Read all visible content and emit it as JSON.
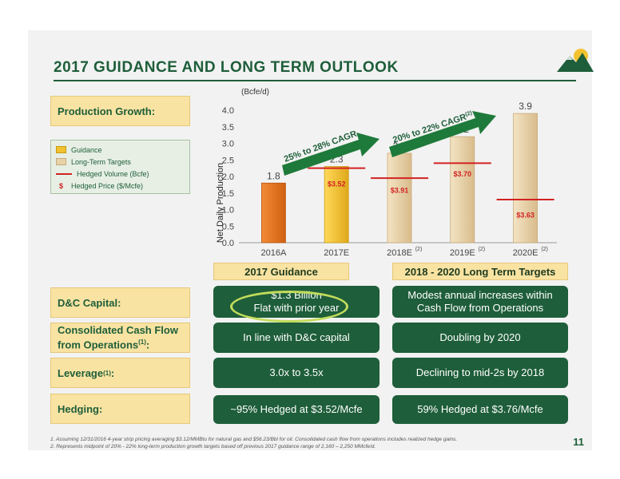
{
  "title": "2017 GUIDANCE AND LONG TERM OUTLOOK",
  "labels": {
    "production_growth": "Production Growth:",
    "dc_capital": "D&C Capital:",
    "cash_flow_line1": "Consolidated Cash Flow",
    "cash_flow_line2": "from Operations",
    "cash_flow_sup": "(1)",
    "cash_flow_colon": ":",
    "leverage": "Leverage",
    "leverage_sup": "(1)",
    "leverage_colon": ":",
    "hedging": "Hedging:"
  },
  "legend": {
    "guidance": "Guidance",
    "long_term": "Long-Term Targets",
    "hedged_volume": "Hedged Volume (Bcfe)",
    "hedged_price_symbol": "$",
    "hedged_price": "Hedged Price ($/Mcfe)"
  },
  "headers": {
    "guidance_2017": "2017 Guidance",
    "long_term": "2018 - 2020 Long Term Targets"
  },
  "table": {
    "dc_2017_line1": "$1.3 Billion",
    "dc_2017_line2": "Flat with prior year",
    "dc_lt_line1": "Modest annual increases within",
    "dc_lt_line2": "Cash Flow from Operations",
    "cf_2017": "In line with D&C capital",
    "cf_lt": "Doubling by 2020",
    "lev_2017": "3.0x to 3.5x",
    "lev_lt": "Declining to mid-2s by 2018",
    "hedge_2017": "~95% Hedged at $3.52/Mcfe",
    "hedge_lt": "59% Hedged at $3.76/Mcfe"
  },
  "footnotes": {
    "line1": "1. Assuming 12/31/2016 4-year strip pricing averaging $3.12/MMBtu for natural gas and $56.23/Bbl for oil.  Consolidated cash flow from operations includes realized hedge gains.",
    "line2": "2. Represents midpoint of 20% - 22% long-term production growth targets based off previous 2017 guidance range of 2,160 – 2,250 MMcfe/d."
  },
  "page_number": "11",
  "colors": {
    "brand_green": "#1e5e3a",
    "gold": "#f9e3a2",
    "bar_2016": "#e87722",
    "bar_2017": "#f2c12e",
    "bar_target": "#e8d2a8",
    "hedge_red": "#d22222"
  },
  "chart_data": {
    "type": "bar",
    "unit_label": "(Bcfe/d)",
    "ylabel": "Net Daily Production",
    "ylim": [
      0,
      4.0
    ],
    "yticks": [
      "0.0",
      "0.5",
      "1.0",
      "1.5",
      "2.0",
      "2.5",
      "3.0",
      "3.5",
      "4.0"
    ],
    "categories": [
      "2016A",
      "2017E",
      "2018E",
      "2019E",
      "2020E"
    ],
    "category_superscripts": [
      "",
      "",
      "(2)",
      "(2)",
      "(2)"
    ],
    "values": [
      1.8,
      2.3,
      2.7,
      3.2,
      3.9
    ],
    "value_labels": [
      "1.8",
      "2.3",
      "2.7",
      "3.2",
      "3.9"
    ],
    "hedged_volume": [
      null,
      2.25,
      1.95,
      2.4,
      1.3
    ],
    "hedged_price_labels": [
      "",
      "$3.52",
      "$3.91",
      "$3.70",
      "$3.63"
    ],
    "hedged_price_y": [
      null,
      1.8,
      1.6,
      2.1,
      0.85
    ],
    "series_kind": [
      "actual",
      "guidance",
      "target",
      "target",
      "target"
    ],
    "arrow_1_label": "25% to 28% CAGR",
    "arrow_2_label": "20% to 22% CAGR",
    "arrow_2_sup": "(2)"
  }
}
